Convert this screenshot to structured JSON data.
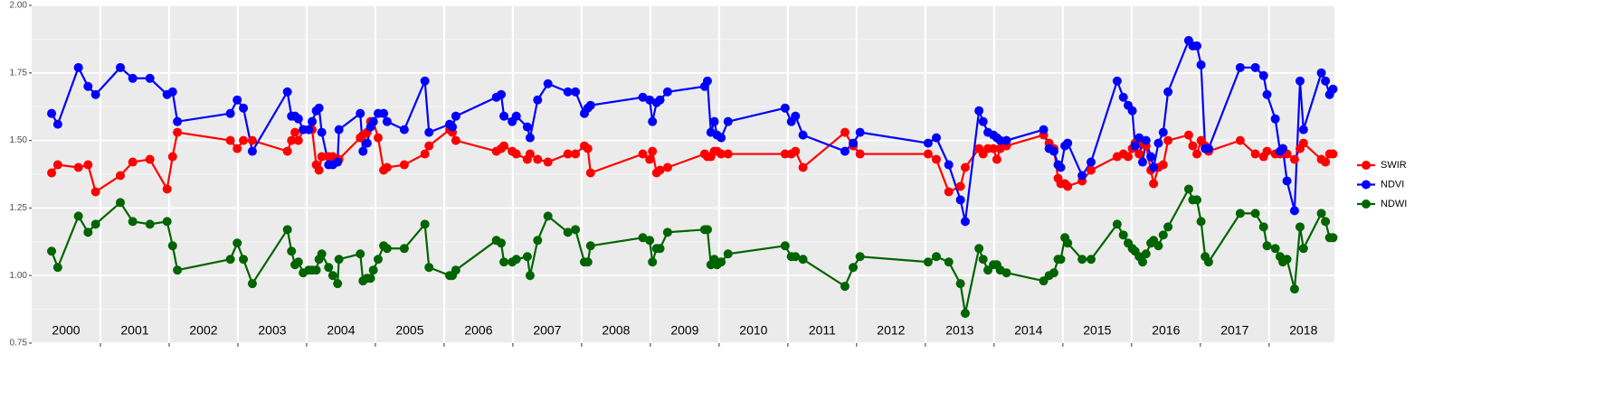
{
  "chart_data": {
    "type": "line",
    "legend": "right",
    "grid": true,
    "xlim": [
      2000,
      2018.95
    ],
    "ylim": [
      0.75,
      2.0
    ],
    "yticks": [
      {
        "value": 0.75,
        "label": "0.75"
      },
      {
        "value": 1.0,
        "label": "1.00"
      },
      {
        "value": 1.25,
        "label": "1.25"
      },
      {
        "value": 1.5,
        "label": "1.50"
      },
      {
        "value": 1.75,
        "label": "1.75"
      },
      {
        "value": 2.0,
        "label": "2.00"
      }
    ],
    "xticks": [
      2001,
      2002,
      2003,
      2004,
      2005,
      2006,
      2007,
      2008,
      2009,
      2010,
      2011,
      2012,
      2013,
      2014,
      2015,
      2016,
      2017,
      2018
    ],
    "year_labels": [
      2000,
      2001,
      2002,
      2003,
      2004,
      2005,
      2006,
      2007,
      2008,
      2009,
      2010,
      2011,
      2012,
      2013,
      2014,
      2015,
      2016,
      2017,
      2018
    ],
    "x": [
      2000.29,
      2000.38,
      2000.68,
      2000.82,
      2000.93,
      2001.29,
      2001.47,
      2001.72,
      2001.97,
      2002.05,
      2002.12,
      2002.89,
      2002.99,
      2003.08,
      2003.21,
      2003.72,
      2003.78,
      2003.83,
      2003.88,
      2003.95,
      2004.03,
      2004.08,
      2004.14,
      2004.18,
      2004.22,
      2004.32,
      2004.38,
      2004.45,
      2004.47,
      2004.78,
      2004.82,
      2004.88,
      2004.93,
      2004.97,
      2005.04,
      2005.12,
      2005.17,
      2005.42,
      2005.72,
      2005.78,
      2006.08,
      2006.12,
      2006.17,
      2006.76,
      2006.83,
      2006.87,
      2006.99,
      2007.05,
      2007.21,
      2007.25,
      2007.36,
      2007.51,
      2007.8,
      2007.91,
      2008.04,
      2008.09,
      2008.13,
      2008.89,
      2008.99,
      2009.03,
      2009.09,
      2009.14,
      2009.25,
      2009.79,
      2009.83,
      2009.88,
      2009.93,
      2009.97,
      2010.03,
      2010.13,
      2010.96,
      2011.05,
      2011.11,
      2011.22,
      2011.83,
      2011.95,
      2012.05,
      2013.04,
      2013.16,
      2013.34,
      2013.51,
      2013.58,
      2013.78,
      2013.84,
      2013.91,
      2013.99,
      2014.04,
      2014.09,
      2014.18,
      2014.72,
      2014.8,
      2014.87,
      2014.93,
      2014.97,
      2015.03,
      2015.07,
      2015.28,
      2015.41,
      2015.79,
      2015.88,
      2015.95,
      2016.01,
      2016.05,
      2016.11,
      2016.16,
      2016.21,
      2016.28,
      2016.32,
      2016.39,
      2016.46,
      2016.53,
      2016.83,
      2016.89,
      2016.95,
      2017.01,
      2017.07,
      2017.12,
      2017.58,
      2017.8,
      2017.92,
      2017.97,
      2018.09,
      2018.16,
      2018.2,
      2018.26,
      2018.37,
      2018.45,
      2018.5,
      2018.76,
      2018.82,
      2018.88,
      2018.93
    ],
    "series": [
      {
        "name": "SWIR",
        "color": "#ff0000",
        "values": [
          1.38,
          1.41,
          1.4,
          1.41,
          1.31,
          1.37,
          1.42,
          1.43,
          1.32,
          1.44,
          1.53,
          1.5,
          1.47,
          1.5,
          1.5,
          1.46,
          1.5,
          1.53,
          1.5,
          1.54,
          1.54,
          1.54,
          1.41,
          1.39,
          1.44,
          1.44,
          1.44,
          1.43,
          1.43,
          1.51,
          1.52,
          1.53,
          1.57,
          1.57,
          1.51,
          1.39,
          1.4,
          1.41,
          1.45,
          1.48,
          1.54,
          1.53,
          1.5,
          1.46,
          1.47,
          1.48,
          1.46,
          1.45,
          1.43,
          1.45,
          1.43,
          1.42,
          1.45,
          1.45,
          1.48,
          1.47,
          1.38,
          1.45,
          1.43,
          1.46,
          1.38,
          1.39,
          1.4,
          1.45,
          1.44,
          1.44,
          1.46,
          1.46,
          1.45,
          1.45,
          1.45,
          1.45,
          1.46,
          1.4,
          1.53,
          1.48,
          1.45,
          1.45,
          1.43,
          1.31,
          1.33,
          1.4,
          1.47,
          1.45,
          1.47,
          1.47,
          1.43,
          1.47,
          1.48,
          1.52,
          1.49,
          1.47,
          1.36,
          1.34,
          1.34,
          1.33,
          1.35,
          1.39,
          1.44,
          1.45,
          1.44,
          1.47,
          1.49,
          1.45,
          1.49,
          1.48,
          1.39,
          1.34,
          1.4,
          1.41,
          1.5,
          1.52,
          1.48,
          1.45,
          1.5,
          1.48,
          1.46,
          1.5,
          1.45,
          1.44,
          1.46,
          1.45,
          1.45,
          1.47,
          1.45,
          1.43,
          1.47,
          1.49,
          1.43,
          1.42,
          1.45,
          1.45
        ]
      },
      {
        "name": "NDVI",
        "color": "#0000ff",
        "values": [
          1.6,
          1.56,
          1.77,
          1.7,
          1.67,
          1.77,
          1.73,
          1.73,
          1.67,
          1.68,
          1.57,
          1.6,
          1.65,
          1.62,
          1.46,
          1.68,
          1.59,
          1.59,
          1.58,
          1.54,
          1.54,
          1.57,
          1.61,
          1.62,
          1.53,
          1.41,
          1.41,
          1.42,
          1.54,
          1.6,
          1.46,
          1.49,
          1.55,
          1.57,
          1.6,
          1.6,
          1.57,
          1.54,
          1.72,
          1.53,
          1.56,
          1.55,
          1.59,
          1.66,
          1.67,
          1.59,
          1.57,
          1.59,
          1.55,
          1.51,
          1.65,
          1.71,
          1.68,
          1.68,
          1.6,
          1.62,
          1.63,
          1.66,
          1.65,
          1.57,
          1.64,
          1.65,
          1.68,
          1.7,
          1.72,
          1.53,
          1.57,
          1.52,
          1.51,
          1.57,
          1.62,
          1.57,
          1.59,
          1.52,
          1.46,
          1.49,
          1.53,
          1.49,
          1.51,
          1.41,
          1.28,
          1.2,
          1.61,
          1.57,
          1.53,
          1.52,
          1.51,
          1.5,
          1.5,
          1.54,
          1.47,
          1.46,
          1.41,
          1.4,
          1.48,
          1.49,
          1.37,
          1.42,
          1.72,
          1.66,
          1.63,
          1.61,
          1.48,
          1.51,
          1.42,
          1.5,
          1.44,
          1.4,
          1.49,
          1.53,
          1.68,
          1.87,
          1.85,
          1.85,
          1.78,
          1.47,
          1.47,
          1.77,
          1.77,
          1.74,
          1.67,
          1.58,
          1.46,
          1.47,
          1.35,
          1.24,
          1.72,
          1.54,
          1.75,
          1.72,
          1.67,
          1.69
        ]
      },
      {
        "name": "NDWI",
        "color": "#006400",
        "values": [
          1.09,
          1.03,
          1.22,
          1.16,
          1.19,
          1.27,
          1.2,
          1.19,
          1.2,
          1.11,
          1.02,
          1.06,
          1.12,
          1.06,
          0.97,
          1.17,
          1.09,
          1.04,
          1.05,
          1.01,
          1.02,
          1.02,
          1.02,
          1.06,
          1.08,
          1.03,
          1.0,
          0.97,
          1.06,
          1.08,
          0.98,
          0.99,
          0.99,
          1.02,
          1.06,
          1.11,
          1.1,
          1.1,
          1.19,
          1.03,
          1.0,
          1.0,
          1.02,
          1.13,
          1.12,
          1.05,
          1.05,
          1.06,
          1.07,
          1.0,
          1.13,
          1.22,
          1.16,
          1.17,
          1.05,
          1.05,
          1.11,
          1.14,
          1.13,
          1.05,
          1.1,
          1.1,
          1.16,
          1.17,
          1.17,
          1.04,
          1.06,
          1.04,
          1.05,
          1.08,
          1.11,
          1.07,
          1.07,
          1.06,
          0.96,
          1.03,
          1.07,
          1.05,
          1.07,
          1.05,
          0.97,
          0.86,
          1.1,
          1.06,
          1.02,
          1.04,
          1.04,
          1.02,
          1.01,
          0.98,
          1.0,
          1.01,
          1.06,
          1.06,
          1.14,
          1.12,
          1.06,
          1.06,
          1.19,
          1.15,
          1.12,
          1.1,
          1.09,
          1.07,
          1.05,
          1.08,
          1.12,
          1.13,
          1.11,
          1.15,
          1.18,
          1.32,
          1.28,
          1.28,
          1.2,
          1.07,
          1.05,
          1.23,
          1.23,
          1.18,
          1.11,
          1.1,
          1.07,
          1.05,
          1.06,
          0.95,
          1.18,
          1.1,
          1.23,
          1.2,
          1.14,
          1.14
        ]
      }
    ]
  }
}
